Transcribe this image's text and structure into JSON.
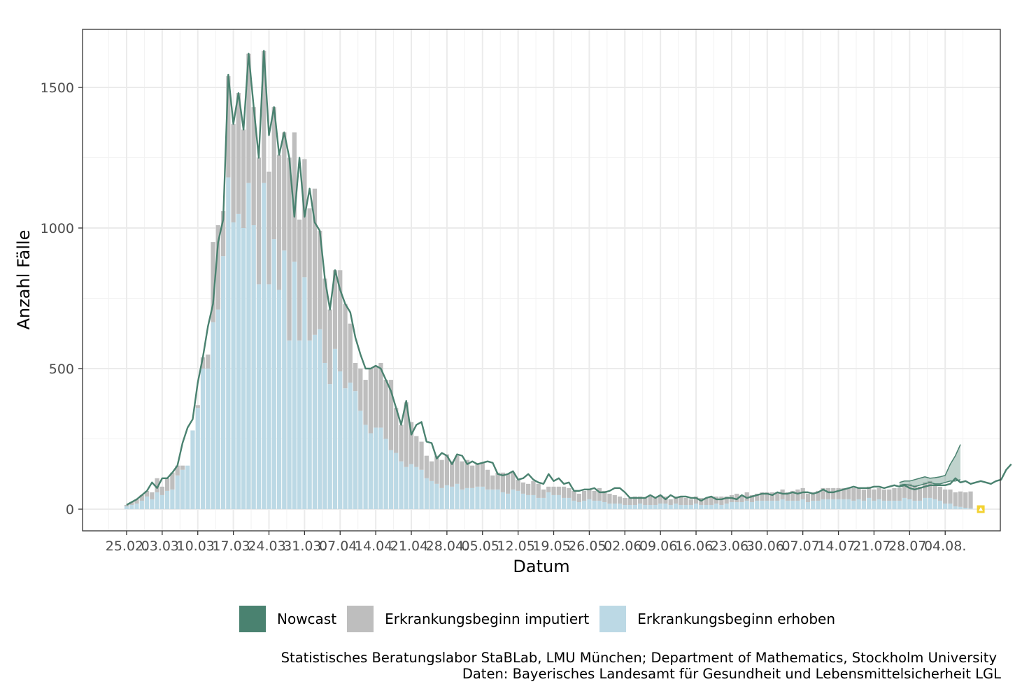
{
  "chart_data": {
    "type": "bar",
    "xlabel": "Datum",
    "ylabel": "Anzahl Fälle",
    "ylim": [
      -80,
      1700
    ],
    "start_date": "2020-02-24",
    "y_ticks": [
      0,
      500,
      1000,
      1500
    ],
    "y_tick_labels": [
      "0",
      "500",
      "1000",
      "1500"
    ],
    "x_tick_labels": [
      "25.02.",
      "03.03.",
      "10.03.",
      "17.03.",
      "24.03.",
      "31.03.",
      "07.04.",
      "14.04.",
      "21.04.",
      "28.04.",
      "05.05.",
      "12.05.",
      "19.05.",
      "26.05.",
      "02.06.",
      "09.06.",
      "16.06.",
      "23.06.",
      "30.06.",
      "07.07.",
      "14.07.",
      "21.07.",
      "28.07.",
      "04.08."
    ],
    "x_tick_days": [
      1,
      8,
      15,
      22,
      29,
      36,
      43,
      50,
      57,
      64,
      71,
      78,
      85,
      92,
      99,
      106,
      113,
      120,
      127,
      134,
      141,
      148,
      155,
      162
    ],
    "colors": {
      "nowcast": "#4a8270",
      "imputiert": "#bebebe",
      "erhoben": "#bcd9e5",
      "band": "#4a8270",
      "marker": "#f3d232"
    },
    "series": [
      {
        "name": "Erkrankungsbeginn erhoben",
        "values": [
          10,
          15,
          20,
          30,
          45,
          35,
          60,
          50,
          65,
          70,
          120,
          140,
          155,
          280,
          360,
          500,
          500,
          665,
          710,
          900,
          1180,
          1020,
          1050,
          1000,
          1160,
          1010,
          800,
          1160,
          800,
          960,
          780,
          920,
          600,
          880,
          600,
          825,
          600,
          620,
          640,
          520,
          445,
          570,
          490,
          430,
          450,
          420,
          350,
          300,
          270,
          290,
          290,
          250,
          210,
          200,
          170,
          150,
          160,
          150,
          140,
          110,
          100,
          90,
          75,
          85,
          80,
          90,
          70,
          75,
          75,
          80,
          80,
          70,
          70,
          70,
          60,
          55,
          70,
          65,
          55,
          50,
          50,
          40,
          40,
          60,
          50,
          50,
          40,
          40,
          30,
          25,
          30,
          35,
          30,
          30,
          25,
          20,
          20,
          20,
          15,
          15,
          15,
          20,
          15,
          15,
          15,
          20,
          20,
          15,
          20,
          15,
          15,
          15,
          20,
          15,
          15,
          15,
          20,
          15,
          20,
          25,
          25,
          25,
          30,
          25,
          30,
          30,
          30,
          30,
          30,
          35,
          30,
          30,
          30,
          35,
          25,
          30,
          30,
          35,
          35,
          35,
          35,
          35,
          35,
          30,
          35,
          30,
          40,
          30,
          35,
          30,
          30,
          30,
          30,
          40,
          35,
          30,
          30,
          40,
          40,
          35,
          30,
          20,
          20,
          10,
          8,
          5,
          3
        ]
      },
      {
        "name": "Erkrankungsbeginn imputiert",
        "values": [
          5,
          10,
          15,
          20,
          20,
          25,
          50,
          30,
          45,
          60,
          35,
          15,
          0,
          0,
          10,
          40,
          50,
          285,
          300,
          160,
          360,
          350,
          430,
          350,
          460,
          420,
          450,
          470,
          400,
          470,
          480,
          420,
          650,
          460,
          430,
          420,
          470,
          520,
          350,
          300,
          265,
          280,
          360,
          300,
          210,
          100,
          150,
          160,
          230,
          220,
          230,
          210,
          250,
          160,
          130,
          230,
          150,
          110,
          100,
          80,
          70,
          100,
          100,
          110,
          90,
          100,
          100,
          100,
          80,
          80,
          85,
          70,
          50,
          60,
          70,
          70,
          60,
          40,
          40,
          40,
          50,
          50,
          30,
          20,
          30,
          30,
          40,
          35,
          35,
          30,
          35,
          35,
          35,
          45,
          40,
          35,
          30,
          25,
          25,
          25,
          30,
          25,
          25,
          30,
          25,
          30,
          25,
          20,
          25,
          30,
          25,
          20,
          25,
          25,
          25,
          30,
          25,
          30,
          25,
          25,
          30,
          25,
          30,
          25,
          25,
          30,
          30,
          30,
          30,
          35,
          30,
          35,
          40,
          40,
          30,
          30,
          35,
          40,
          40,
          40,
          40,
          40,
          40,
          45,
          40,
          40,
          40,
          40,
          40,
          40,
          40,
          45,
          45,
          50,
          55,
          55,
          50,
          55,
          60,
          55,
          50,
          50,
          50,
          50,
          55,
          55,
          60
        ]
      },
      {
        "name": "Nowcast",
        "values": [
          15,
          25,
          35,
          50,
          65,
          95,
          75,
          110,
          110,
          130,
          155,
          235,
          290,
          320,
          450,
          540,
          650,
          730,
          950,
          1030,
          1545,
          1370,
          1480,
          1350,
          1620,
          1430,
          1250,
          1630,
          1330,
          1430,
          1260,
          1340,
          1250,
          1040,
          1250,
          1040,
          1140,
          1020,
          990,
          820,
          710,
          850,
          780,
          730,
          700,
          610,
          550,
          500,
          500,
          510,
          500,
          460,
          420,
          360,
          300,
          385,
          265,
          300,
          310,
          240,
          235,
          180,
          200,
          190,
          160,
          195,
          190,
          160,
          170,
          160,
          165,
          170,
          165,
          125,
          120,
          125,
          135,
          105,
          110,
          125,
          105,
          95,
          90,
          125,
          100,
          110,
          90,
          95,
          65,
          65,
          70,
          70,
          75,
          60,
          60,
          65,
          75,
          75,
          60,
          40,
          40,
          40,
          40,
          50,
          40,
          50,
          35,
          50,
          40,
          45,
          45,
          40,
          40,
          30,
          40,
          45,
          35,
          35,
          40,
          40,
          35,
          50,
          40,
          45,
          50,
          55,
          55,
          50,
          60,
          55,
          55,
          60,
          55,
          60,
          60,
          55,
          60,
          70,
          60,
          60,
          65,
          70,
          75,
          80,
          75,
          75,
          75,
          80,
          80,
          75,
          80,
          85,
          80,
          85,
          75,
          70,
          75,
          80,
          85,
          85,
          85,
          85,
          90,
          110,
          95,
          100,
          90,
          95,
          100,
          95,
          90,
          100,
          105,
          140,
          160
        ]
      }
    ],
    "nowcast_lower": [
      85,
      88,
      85,
      80,
      85,
      90,
      95,
      90,
      90,
      95,
      100,
      100,
      105
    ],
    "nowcast_upper": [
      95,
      100,
      100,
      105,
      110,
      115,
      110,
      112,
      115,
      120,
      160,
      190,
      230
    ],
    "nowcast_band_start_day": 153,
    "marker_day": 169,
    "marker_value": 0
  },
  "legend": {
    "items": [
      {
        "label": "Nowcast",
        "color": "#4a8270"
      },
      {
        "label": "Erkrankungsbeginn imputiert",
        "color": "#bebebe"
      },
      {
        "label": "Erkrankungsbeginn erhoben",
        "color": "#bcd9e5"
      }
    ]
  },
  "caption": {
    "line1": "Statistisches Beratungslabor StaBLab, LMU München;  Department of Mathematics, Stockholm University",
    "line2": "Daten: Bayerisches Landesamt für Gesundheit und Lebensmittelsicherheit LGL"
  }
}
